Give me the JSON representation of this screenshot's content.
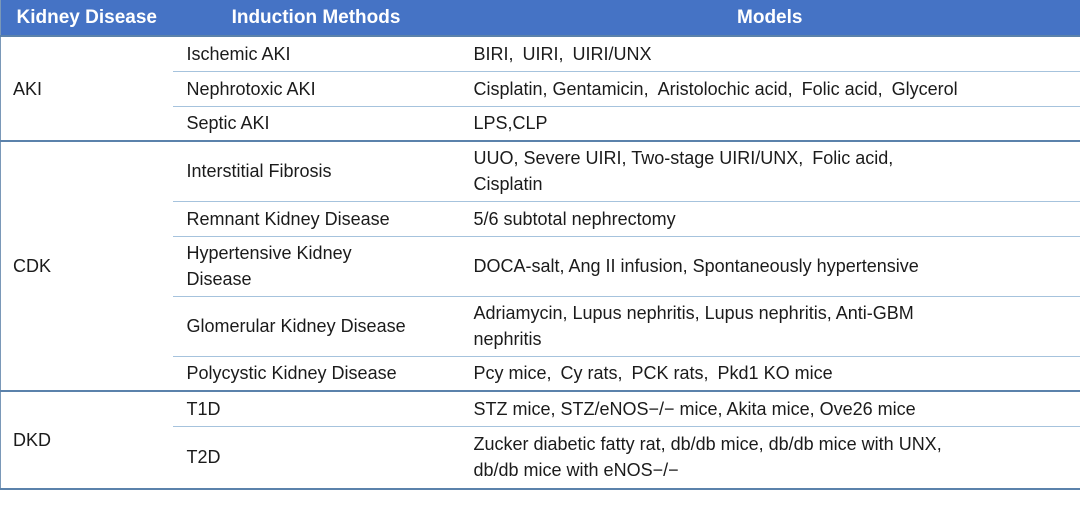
{
  "colors": {
    "header_bg": "#4573c5",
    "header_text": "#ffffff",
    "body_text": "#1b1b1b",
    "group_border": "#5b82ab",
    "row_border": "#a6c3dd",
    "outer_border": "#7a98b8"
  },
  "table": {
    "headers": [
      "Kidney Disease",
      "Induction Methods",
      "Models"
    ],
    "groups": [
      {
        "disease": "AKI",
        "rows": [
          {
            "method": "Ischemic AKI",
            "models": "BIRI, UIRI, UIRI/UNX"
          },
          {
            "method": "Nephrotoxic AKI",
            "models": "Cisplatin, Gentamicin, Aristolochic acid, Folic acid, Glycerol"
          },
          {
            "method": "Septic AKI",
            "models": "LPS,CLP"
          }
        ]
      },
      {
        "disease": "CDK",
        "rows": [
          {
            "method": "Interstitial Fibrosis",
            "models": "UUO, Severe UIRI, Two-stage UIRI/UNX, Folic acid,\nCisplatin"
          },
          {
            "method": "Remnant Kidney Disease",
            "models": "5/6 subtotal nephrectomy"
          },
          {
            "method": "Hypertensive Kidney\nDisease",
            "models": "DOCA-salt, Ang II infusion, Spontaneously hypertensive"
          },
          {
            "method": "Glomerular Kidney Disease",
            "models": "Adriamycin, Lupus nephritis, Lupus nephritis, Anti-GBM\nnephritis"
          },
          {
            "method": "Polycystic Kidney Disease",
            "models": "Pcy mice, Cy rats, PCK rats, Pkd1 KO mice"
          }
        ]
      },
      {
        "disease": "DKD",
        "rows": [
          {
            "method": "T1D",
            "models": "STZ mice, STZ/eNOS−/− mice, Akita mice, Ove26 mice"
          },
          {
            "method": "T2D",
            "models": "Zucker diabetic fatty rat, db/db mice, db/db mice with UNX,\ndb/db mice with eNOS−/−"
          }
        ]
      }
    ]
  }
}
